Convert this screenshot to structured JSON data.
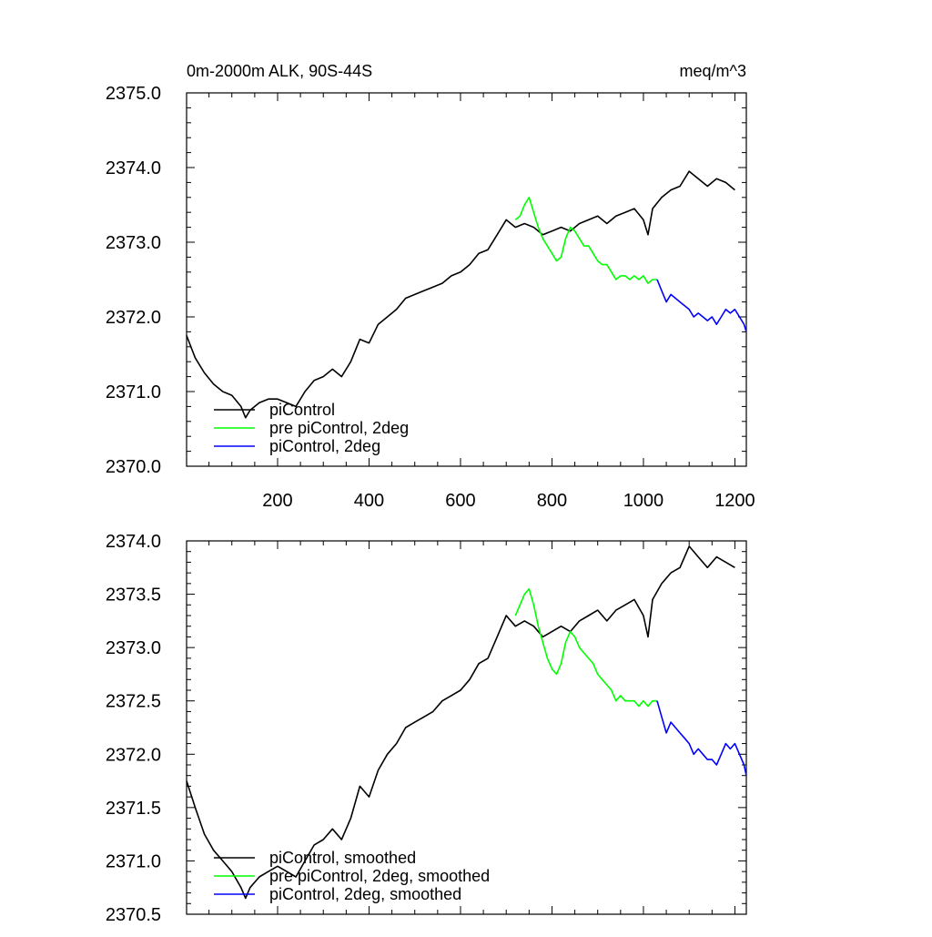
{
  "chart_data": [
    {
      "type": "line",
      "title": "0m-2000m ALK, 90S-44S",
      "units": "meq/m^3",
      "xlabel": "",
      "ylabel": "",
      "xlim": [
        1,
        1225
      ],
      "ylim": [
        2370.0,
        2375.0
      ],
      "xticks": [
        200,
        400,
        600,
        800,
        1000,
        1200
      ],
      "xtick_labels": [
        "200",
        "400",
        "600",
        "800",
        "1000",
        "1200"
      ],
      "yticks": [
        2370.0,
        2371.0,
        2372.0,
        2373.0,
        2374.0,
        2375.0
      ],
      "ytick_labels": [
        "2370.0",
        "2371.0",
        "2372.0",
        "2373.0",
        "2374.0",
        "2375.0"
      ],
      "legend_position": "bottom-left",
      "series": [
        {
          "name": "piControl",
          "color": "#000000",
          "x": [
            1,
            20,
            40,
            60,
            80,
            100,
            120,
            130,
            140,
            160,
            180,
            200,
            220,
            240,
            260,
            280,
            300,
            320,
            340,
            360,
            380,
            400,
            420,
            440,
            460,
            480,
            500,
            520,
            540,
            560,
            580,
            600,
            620,
            640,
            660,
            680,
            700,
            720,
            740,
            760,
            780,
            800,
            820,
            840,
            860,
            880,
            900,
            920,
            940,
            960,
            980,
            1000,
            1010,
            1020,
            1040,
            1060,
            1080,
            1100,
            1120,
            1140,
            1160,
            1180,
            1200
          ],
          "values": [
            2371.75,
            2371.45,
            2371.25,
            2371.1,
            2371.0,
            2370.95,
            2370.8,
            2370.65,
            2370.75,
            2370.85,
            2370.9,
            2370.9,
            2370.85,
            2370.8,
            2371.0,
            2371.15,
            2371.2,
            2371.3,
            2371.2,
            2371.4,
            2371.7,
            2371.65,
            2371.9,
            2372.0,
            2372.1,
            2372.25,
            2372.3,
            2372.35,
            2372.4,
            2372.45,
            2372.55,
            2372.6,
            2372.7,
            2372.85,
            2372.9,
            2373.1,
            2373.3,
            2373.2,
            2373.25,
            2373.2,
            2373.1,
            2373.15,
            2373.2,
            2373.15,
            2373.25,
            2373.3,
            2373.35,
            2373.25,
            2373.35,
            2373.4,
            2373.45,
            2373.3,
            2373.1,
            2373.45,
            2373.6,
            2373.7,
            2373.75,
            2373.95,
            2373.85,
            2373.75,
            2373.85,
            2373.8,
            2373.7
          ]
        },
        {
          "name": "pre piControl, 2deg",
          "color": "#00ff00",
          "x": [
            720,
            730,
            740,
            750,
            760,
            770,
            780,
            790,
            800,
            810,
            820,
            830,
            840,
            850,
            860,
            870,
            880,
            890,
            900,
            910,
            920,
            930,
            940,
            950,
            960,
            970,
            980,
            990,
            1000,
            1010,
            1020,
            1030
          ],
          "values": [
            2373.3,
            2373.35,
            2373.5,
            2373.6,
            2373.4,
            2373.2,
            2373.05,
            2372.95,
            2372.85,
            2372.75,
            2372.8,
            2373.05,
            2373.2,
            2373.15,
            2373.05,
            2372.95,
            2372.95,
            2372.85,
            2372.75,
            2372.7,
            2372.7,
            2372.6,
            2372.5,
            2372.55,
            2372.55,
            2372.5,
            2372.55,
            2372.5,
            2372.55,
            2372.45,
            2372.5,
            2372.5
          ]
        },
        {
          "name": "piControl, 2deg",
          "color": "#0000ff",
          "x": [
            1030,
            1040,
            1050,
            1060,
            1070,
            1080,
            1090,
            1100,
            1110,
            1120,
            1130,
            1140,
            1150,
            1160,
            1170,
            1180,
            1190,
            1200,
            1210,
            1220,
            1225
          ],
          "values": [
            2372.5,
            2372.35,
            2372.2,
            2372.3,
            2372.25,
            2372.2,
            2372.15,
            2372.1,
            2372.0,
            2372.05,
            2372.0,
            2371.95,
            2372.0,
            2371.9,
            2372.0,
            2372.1,
            2372.05,
            2372.1,
            2372.0,
            2371.9,
            2371.8
          ]
        }
      ]
    },
    {
      "type": "line",
      "title": "",
      "units": "",
      "xlabel": "",
      "ylabel": "",
      "xlim": [
        1,
        1225
      ],
      "ylim": [
        2370.5,
        2374.0
      ],
      "xticks": [
        200,
        400,
        600,
        800,
        1000,
        1200
      ],
      "xtick_labels": [],
      "yticks": [
        2370.5,
        2371.0,
        2371.5,
        2372.0,
        2372.5,
        2373.0,
        2373.5,
        2374.0
      ],
      "ytick_labels": [
        "2370.5",
        "2371.0",
        "2371.5",
        "2372.0",
        "2372.5",
        "2373.0",
        "2373.5",
        "2374.0"
      ],
      "legend_position": "bottom-left",
      "series": [
        {
          "name": "piControl, smoothed",
          "color": "#000000",
          "x": [
            1,
            20,
            40,
            60,
            80,
            100,
            120,
            130,
            140,
            160,
            180,
            200,
            220,
            240,
            260,
            280,
            300,
            320,
            340,
            360,
            380,
            400,
            420,
            440,
            460,
            480,
            500,
            520,
            540,
            560,
            580,
            600,
            620,
            640,
            660,
            680,
            700,
            720,
            740,
            760,
            780,
            800,
            820,
            840,
            860,
            880,
            900,
            920,
            940,
            960,
            980,
            1000,
            1010,
            1020,
            1040,
            1060,
            1080,
            1100,
            1120,
            1140,
            1160,
            1180,
            1200
          ],
          "values": [
            2371.75,
            2371.5,
            2371.25,
            2371.1,
            2371.0,
            2370.9,
            2370.75,
            2370.65,
            2370.75,
            2370.85,
            2370.9,
            2370.95,
            2370.9,
            2370.85,
            2371.0,
            2371.15,
            2371.2,
            2371.3,
            2371.2,
            2371.4,
            2371.7,
            2371.6,
            2371.85,
            2372.0,
            2372.1,
            2372.25,
            2372.3,
            2372.35,
            2372.4,
            2372.5,
            2372.55,
            2372.6,
            2372.7,
            2372.85,
            2372.9,
            2373.1,
            2373.3,
            2373.2,
            2373.25,
            2373.2,
            2373.1,
            2373.15,
            2373.2,
            2373.15,
            2373.25,
            2373.3,
            2373.35,
            2373.25,
            2373.35,
            2373.4,
            2373.45,
            2373.3,
            2373.1,
            2373.45,
            2373.6,
            2373.7,
            2373.75,
            2373.95,
            2373.85,
            2373.75,
            2373.85,
            2373.8,
            2373.75
          ]
        },
        {
          "name": "pre piControl, 2deg, smoothed",
          "color": "#00ff00",
          "x": [
            720,
            730,
            740,
            750,
            760,
            770,
            780,
            790,
            800,
            810,
            820,
            830,
            840,
            850,
            860,
            870,
            880,
            890,
            900,
            910,
            920,
            930,
            940,
            950,
            960,
            970,
            980,
            990,
            1000,
            1010,
            1020,
            1030
          ],
          "values": [
            2373.3,
            2373.4,
            2373.5,
            2373.55,
            2373.4,
            2373.2,
            2373.05,
            2372.9,
            2372.8,
            2372.75,
            2372.85,
            2373.05,
            2373.15,
            2373.1,
            2373.0,
            2372.95,
            2372.9,
            2372.85,
            2372.75,
            2372.7,
            2372.65,
            2372.6,
            2372.5,
            2372.55,
            2372.5,
            2372.5,
            2372.5,
            2372.45,
            2372.5,
            2372.45,
            2372.5,
            2372.5
          ]
        },
        {
          "name": "piControl, 2deg, smoothed",
          "color": "#0000ff",
          "x": [
            1030,
            1040,
            1050,
            1060,
            1070,
            1080,
            1090,
            1100,
            1110,
            1120,
            1130,
            1140,
            1150,
            1160,
            1170,
            1180,
            1190,
            1200,
            1210,
            1220,
            1225
          ],
          "values": [
            2372.5,
            2372.35,
            2372.2,
            2372.3,
            2372.25,
            2372.2,
            2372.15,
            2372.1,
            2372.0,
            2372.05,
            2372.0,
            2371.95,
            2371.95,
            2371.9,
            2372.0,
            2372.1,
            2372.05,
            2372.1,
            2372.0,
            2371.9,
            2371.8
          ]
        }
      ]
    }
  ]
}
